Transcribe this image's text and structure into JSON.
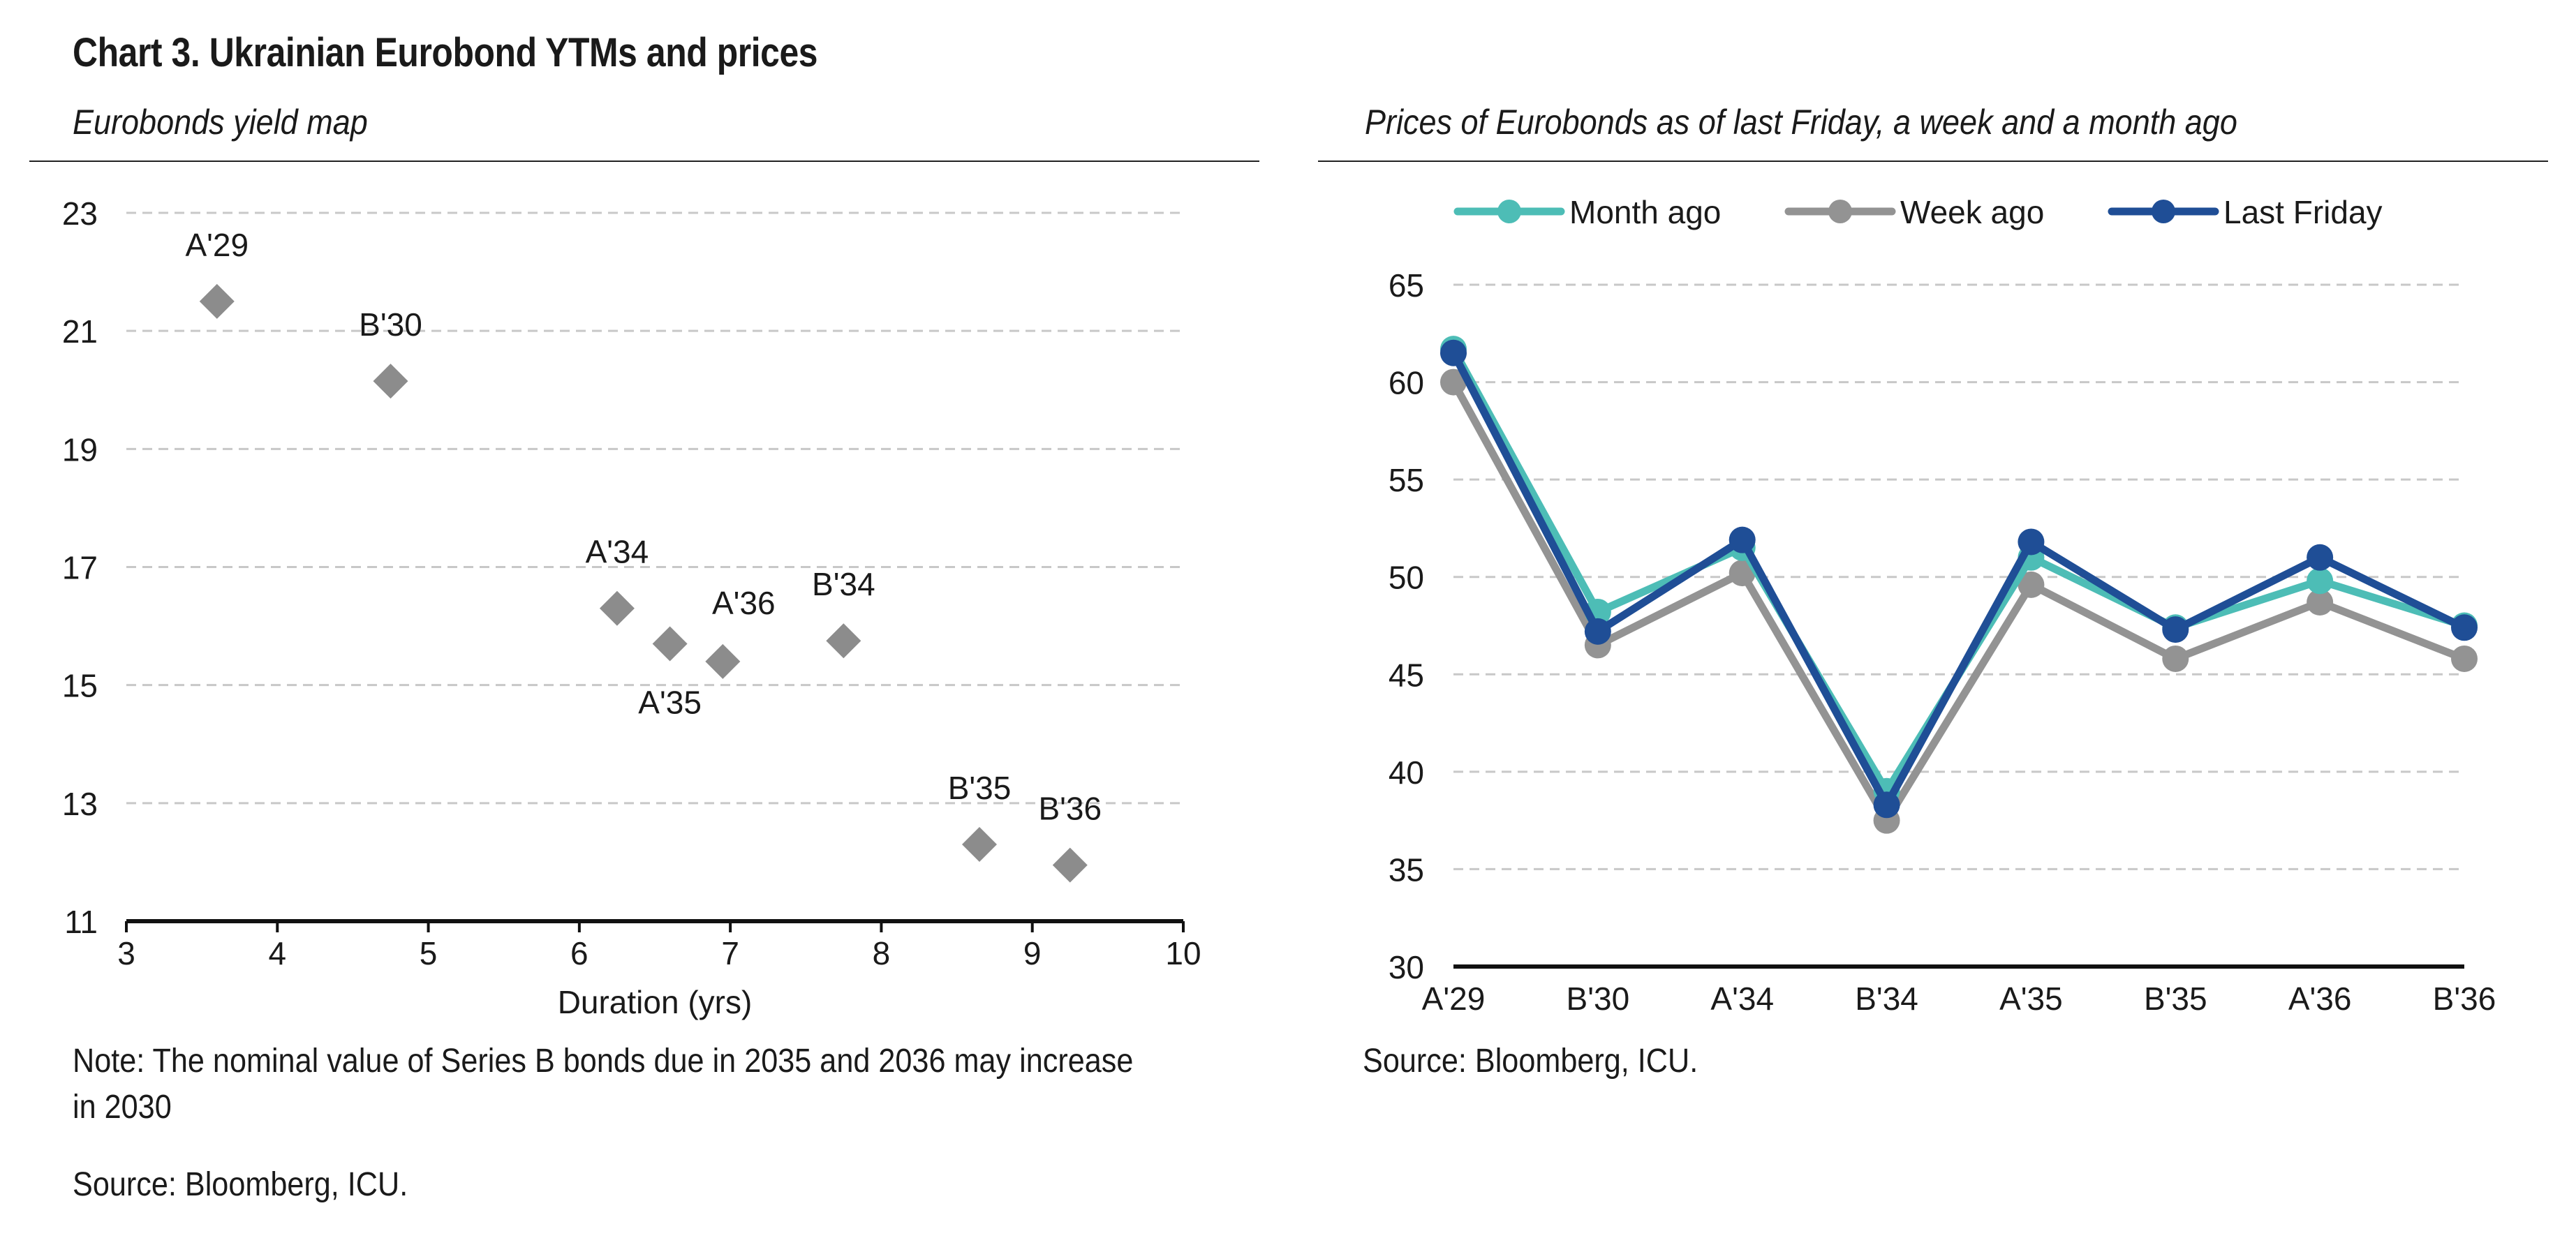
{
  "title": "Chart 3. Ukrainian Eurobond YTMs and prices",
  "chart_data": [
    {
      "type": "scatter",
      "title": "Eurobonds yield map",
      "xlabel": "Duration (yrs)",
      "ylabel": "",
      "xlim": [
        3,
        10
      ],
      "ylim": [
        11,
        23
      ],
      "xticks": [
        3,
        4,
        5,
        6,
        7,
        8,
        9,
        10
      ],
      "yticks": [
        11,
        13,
        15,
        17,
        19,
        21,
        23
      ],
      "grid": true,
      "marker": "diamond",
      "marker_color": "#8c8c8c",
      "points": [
        {
          "label": "A'29",
          "x": 3.6,
          "y": 21.5,
          "label_pos": "above"
        },
        {
          "label": "B'30",
          "x": 4.75,
          "y": 20.15,
          "label_pos": "above"
        },
        {
          "label": "A'34",
          "x": 6.25,
          "y": 16.3,
          "label_pos": "above"
        },
        {
          "label": "A'35",
          "x": 6.6,
          "y": 15.7,
          "label_pos": "below"
        },
        {
          "label": "A'36",
          "x": 6.95,
          "y": 15.4,
          "label_pos": "above-right"
        },
        {
          "label": "B'34",
          "x": 7.75,
          "y": 15.75,
          "label_pos": "above"
        },
        {
          "label": "B'35",
          "x": 8.65,
          "y": 12.3,
          "label_pos": "above"
        },
        {
          "label": "B'36",
          "x": 9.25,
          "y": 11.95,
          "label_pos": "above"
        }
      ],
      "note": "Note: The nominal value of Series B bonds due in 2035 and 2036 may increase in 2030",
      "source": "Source: Bloomberg, ICU."
    },
    {
      "type": "line",
      "title": "Prices of Eurobonds as of last Friday, a week and a month ago",
      "categories": [
        "A'29",
        "B'30",
        "A'34",
        "B'34",
        "A'35",
        "B'35",
        "A'36",
        "B'36"
      ],
      "ylim": [
        30,
        65
      ],
      "yticks": [
        30,
        35,
        40,
        45,
        50,
        55,
        60,
        65
      ],
      "grid": true,
      "legend_position": "top",
      "series": [
        {
          "name": "Month ago",
          "color": "#4dbdb6",
          "values": [
            61.7,
            48.2,
            51.5,
            39.0,
            51.0,
            47.4,
            49.8,
            47.5
          ]
        },
        {
          "name": "Week ago",
          "color": "#939393",
          "values": [
            60.0,
            46.5,
            50.2,
            37.5,
            49.6,
            45.8,
            48.7,
            45.8
          ]
        },
        {
          "name": "Last Friday",
          "color": "#1f4e96",
          "values": [
            61.5,
            47.2,
            51.9,
            38.3,
            51.8,
            47.3,
            51.0,
            47.4
          ]
        }
      ],
      "source": "Source: Bloomberg, ICU."
    }
  ]
}
